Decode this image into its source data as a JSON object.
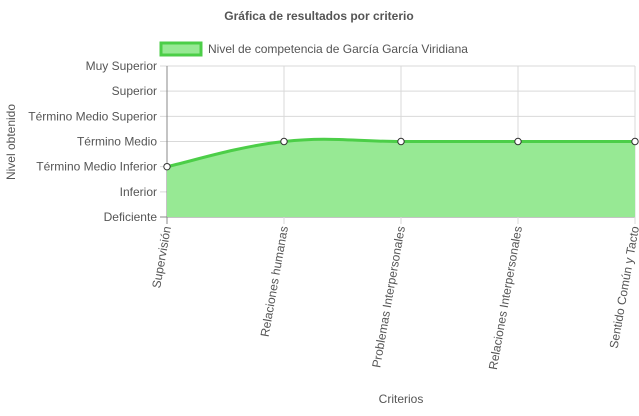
{
  "chart_data": {
    "type": "area",
    "title": "Gráfica de resultados por criterio",
    "xlabel": "Criterios",
    "ylabel": "Nivel obtenido",
    "levels": [
      "Deficiente",
      "Inferior",
      "Término Medio Inferior",
      "Término Medio",
      "Término Medio Superior",
      "Superior",
      "Muy Superior"
    ],
    "categories": [
      "Supervisión",
      "Relaciones humanas",
      "Problemas Interpersonales",
      "Relaciones Interpersonales",
      "Sentido Común y Tacto"
    ],
    "series": [
      {
        "name": "Nivel de competencia de García García Viridiana",
        "values": [
          "Término Medio Inferior",
          "Término Medio",
          "Término Medio",
          "Término Medio",
          "Término Medio"
        ]
      }
    ],
    "legend_position": "top",
    "grid": true,
    "colors": {
      "fill": "#97e994",
      "line": "#4cce48",
      "grid": "#d9d9d9",
      "axis": "#333333",
      "text": "#555555"
    }
  }
}
